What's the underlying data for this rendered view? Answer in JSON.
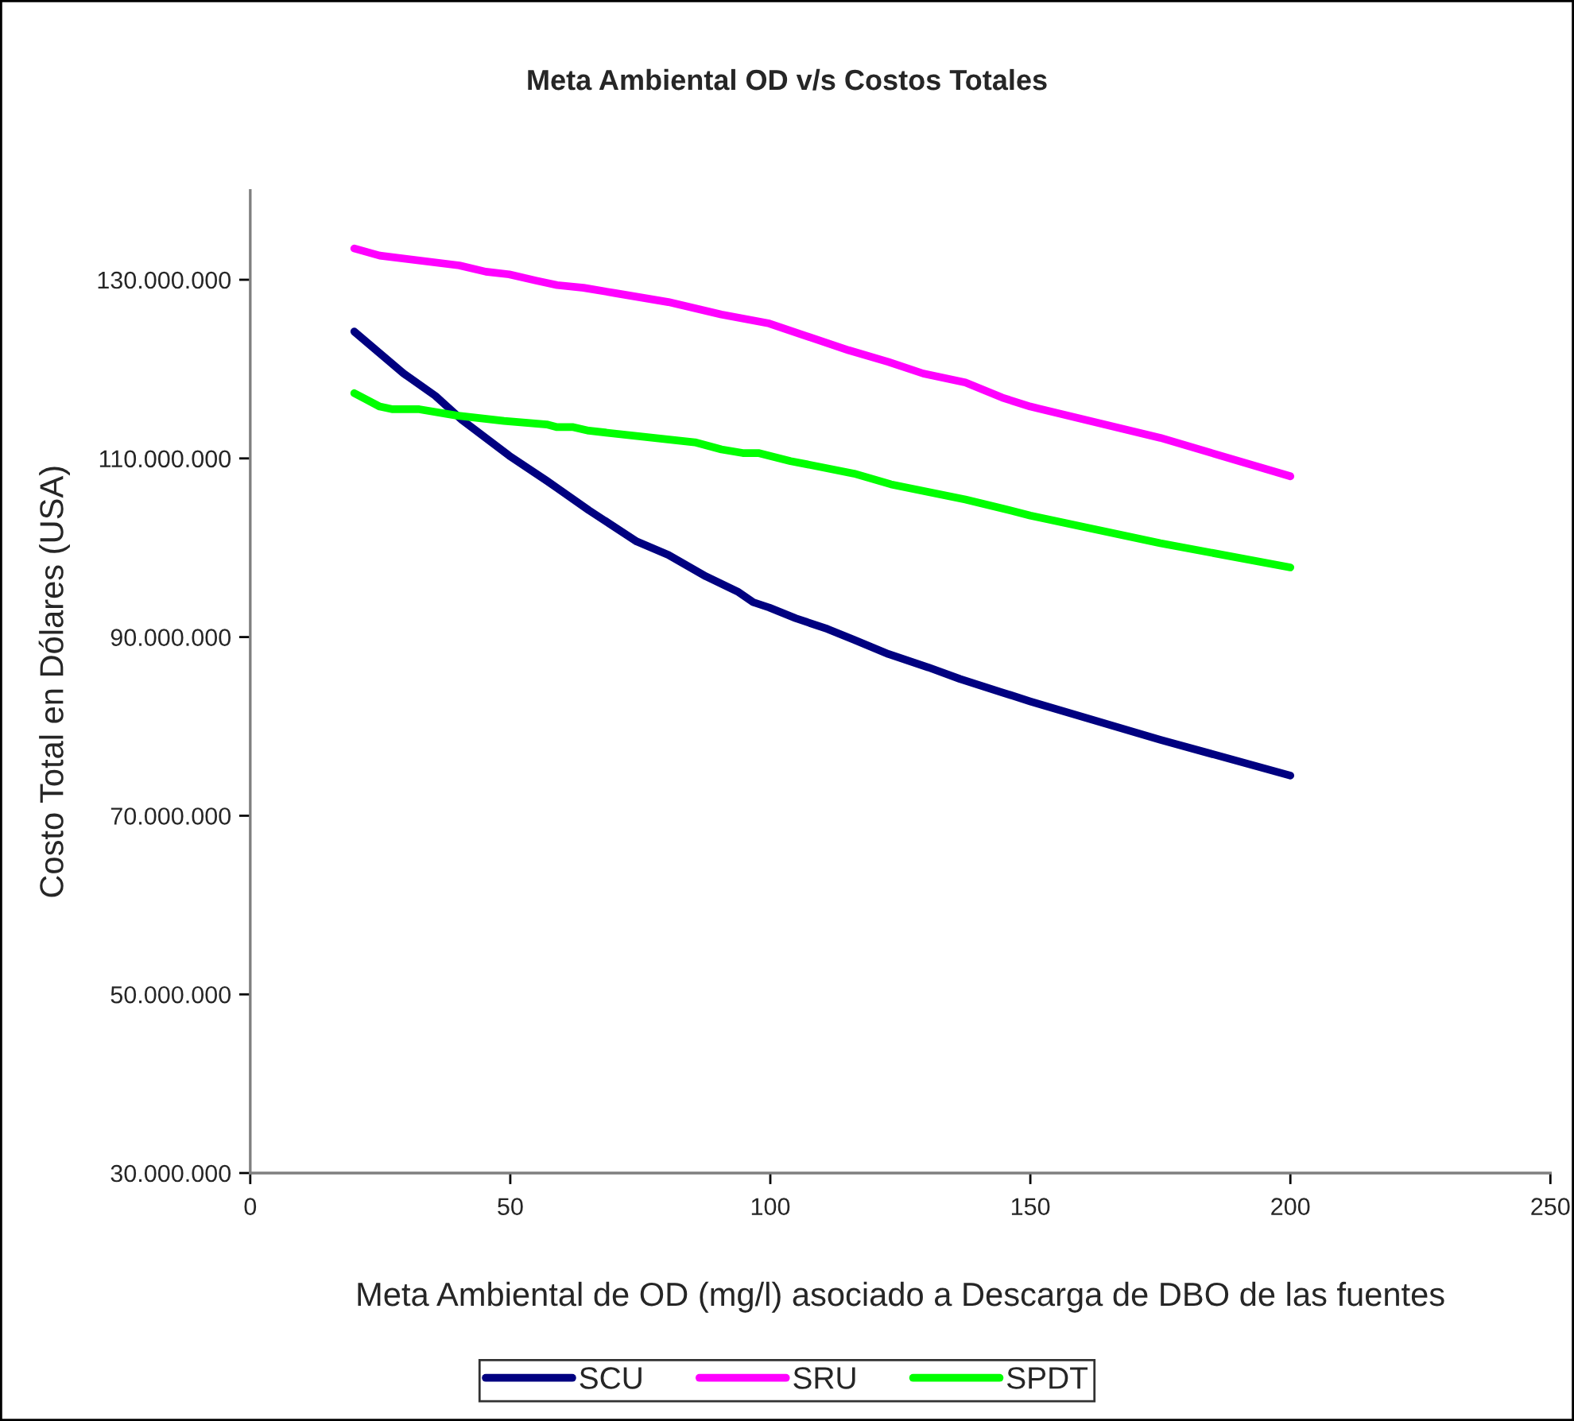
{
  "chart_data": {
    "type": "line",
    "title": "Meta Ambiental OD v/s Costos Totales",
    "xlabel": "Meta Ambiental de OD (mg/l) asociado a Descarga de DBO de las fuentes",
    "ylabel": "Costo Total en Dólares (USA)",
    "xlim": [
      0,
      250
    ],
    "xticks": [
      0,
      50,
      100,
      150,
      200,
      250
    ],
    "ylim": [
      30000000,
      140000000
    ],
    "yticks": [
      {
        "value": 30000000,
        "label": "30.000.000"
      },
      {
        "value": 50000000,
        "label": "50.000.000"
      },
      {
        "value": 70000000,
        "label": "70.000.000"
      },
      {
        "value": 90000000,
        "label": "90.000.000"
      },
      {
        "value": 110000000,
        "label": "110.000.000"
      },
      {
        "value": 130000000,
        "label": "130.000.000"
      }
    ],
    "grid": false,
    "legend": "bottom",
    "marker": "none",
    "line_style": "solid",
    "series": [
      {
        "name": "SCU",
        "color": "#000080",
        "x": [
          20,
          29.5,
          35.6,
          40.7,
          49.8,
          57,
          59,
          65.1,
          74.3,
          80.4,
          87.6,
          93.7,
          96.7,
          99.8,
          104.9,
          111,
          116.1,
          122.7,
          130.4,
          136.5,
          144.6,
          150,
          175,
          200
        ],
        "values": [
          124200000,
          119500000,
          117000000,
          114300000,
          110300000,
          107500000,
          106700000,
          104200000,
          100700000,
          99200000,
          96800000,
          95100000,
          93900000,
          93300000,
          92100000,
          90900000,
          89700000,
          88100000,
          86600000,
          85300000,
          83800000,
          82800000,
          78500000,
          74500000
        ]
      },
      {
        "name": "SRU",
        "color": "#ff00ff",
        "x": [
          20,
          24.9,
          40.2,
          45.3,
          49.8,
          55,
          59,
          64.1,
          70.2,
          80.4,
          90.6,
          99.8,
          105.9,
          115.1,
          122.7,
          129.4,
          137.5,
          144.6,
          150,
          175,
          200
        ],
        "values": [
          133500000,
          132700000,
          131600000,
          130900000,
          130600000,
          129900000,
          129400000,
          129100000,
          128500000,
          127500000,
          126100000,
          125100000,
          123900000,
          122100000,
          120800000,
          119500000,
          118500000,
          116800000,
          115800000,
          112300000,
          108000000
        ]
      },
      {
        "name": "SPDT",
        "color": "#00ff00",
        "x": [
          20,
          24.9,
          27.4,
          32.5,
          39.7,
          48.8,
          57,
          59,
          62.1,
          65.1,
          85.5,
          90.6,
          94.7,
          97.7,
          103.9,
          116.1,
          123.2,
          137.5,
          144.6,
          150,
          175,
          200
        ],
        "values": [
          117300000,
          115800000,
          115500000,
          115500000,
          114800000,
          114200000,
          113800000,
          113500000,
          113500000,
          113100000,
          111800000,
          111000000,
          110600000,
          110600000,
          109700000,
          108300000,
          107100000,
          105400000,
          104400000,
          103600000,
          100500000,
          97800000
        ]
      }
    ]
  }
}
